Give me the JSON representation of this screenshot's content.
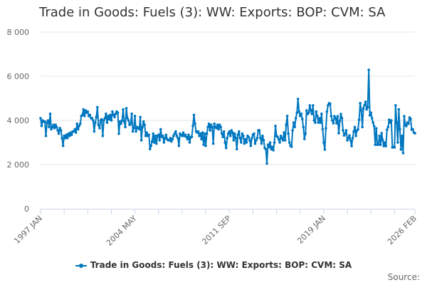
{
  "chart_data": {
    "type": "line",
    "title": "Trade in Goods: Fuels (3): WW: Exports: BOP: CVM: SA",
    "xlabel": "",
    "ylabel": "",
    "x_start": "1997 JAN",
    "x_end": "2026 FEB",
    "frequency": "monthly",
    "x_tick_labels": [
      "1997 JAN",
      "2004 MAY",
      "2011 SEP",
      "2019 JAN",
      "2026 FEB"
    ],
    "y_tick_labels": [
      "0",
      "2 000",
      "4 000",
      "6 000",
      "8 000"
    ],
    "ylim": [
      0,
      8000
    ],
    "grid": "horizontal",
    "legend_position": "bottom",
    "color": "#0077c0",
    "series": [
      {
        "name": "Trade in Goods: Fuels (3): WW: Exports: BOP: CVM: SA",
        "values": [
          4100,
          3750,
          4000,
          3950,
          3950,
          3300,
          3900,
          4000,
          3700,
          4300,
          3600,
          3700,
          3800,
          3650,
          3800,
          3700,
          3550,
          3400,
          3650,
          3550,
          3200,
          2850,
          3300,
          3200,
          3350,
          3200,
          3400,
          3300,
          3450,
          3350,
          3500,
          3500,
          3600,
          3450,
          3850,
          3600,
          3750,
          3850,
          4200,
          4250,
          4500,
          4200,
          4450,
          4350,
          4400,
          4200,
          4250,
          4100,
          4100,
          4000,
          3500,
          3900,
          4150,
          4600,
          3800,
          3650,
          4000,
          4050,
          3300,
          4000,
          4100,
          4300,
          3900,
          4200,
          4050,
          4250,
          4000,
          4400,
          4250,
          4150,
          4300,
          4400,
          4350,
          3400,
          3950,
          3850,
          4000,
          4500,
          3950,
          3700,
          4550,
          4100,
          4000,
          3800,
          3850,
          4300,
          3500,
          3650,
          4200,
          3500,
          3700,
          3650,
          3600,
          4150,
          3100,
          3700,
          3950,
          3800,
          3300,
          3450,
          3300,
          3350,
          2700,
          2850,
          3050,
          3400,
          3000,
          3300,
          2950,
          3300,
          3350,
          3100,
          3600,
          3250,
          3300,
          3000,
          3200,
          3350,
          3150,
          3100,
          3100,
          3200,
          3050,
          3150,
          3300,
          3400,
          3500,
          3300,
          3200,
          2850,
          3400,
          3350,
          3300,
          3450,
          3300,
          3350,
          3250,
          3150,
          3350,
          3000,
          3250,
          3250,
          3750,
          4250,
          3850,
          3500,
          3450,
          3500,
          3300,
          3400,
          3150,
          3450,
          2900,
          3400,
          2850,
          3400,
          3700,
          3850,
          3550,
          3800,
          3700,
          2950,
          3850,
          3700,
          3650,
          3800,
          3600,
          3800,
          3700,
          3400,
          3250,
          3500,
          3000,
          2750,
          3200,
          3400,
          3500,
          3300,
          3550,
          3450,
          3100,
          3400,
          3200,
          2700,
          3350,
          3500,
          3200,
          3000,
          3400,
          3300,
          2950,
          3150,
          3000,
          3300,
          3250,
          3100,
          2850,
          3200,
          3350,
          3400,
          2950,
          3100,
          3200,
          3550,
          3550,
          3200,
          2950,
          3300,
          3100,
          2750,
          2700,
          2050,
          2900,
          2800,
          3000,
          2700,
          2800,
          2650,
          3000,
          3750,
          3300,
          3250,
          3150,
          3000,
          3300,
          3200,
          3100,
          3450,
          3100,
          3800,
          4200,
          3400,
          3000,
          2850,
          2810,
          3550,
          3900,
          3700,
          4100,
          4350,
          4970,
          4400,
          4200,
          4300,
          4070,
          3700,
          3160,
          3400,
          4450,
          4290,
          4350,
          4680,
          4450,
          4290,
          4680,
          4000,
          3900,
          4400,
          4200,
          3900,
          4100,
          3900,
          4300,
          3600,
          3000,
          2680,
          3640,
          4400,
          4680,
          4780,
          4750,
          4190,
          4000,
          3870,
          4190,
          4100,
          3870,
          4190,
          3420,
          3970,
          4290,
          4100,
          3550,
          3320,
          3400,
          3550,
          3100,
          3200,
          3320,
          3100,
          2840,
          3200,
          3500,
          3700,
          3300,
          3550,
          3600,
          4030,
          4780,
          4450,
          3700,
          4550,
          4700,
          4840,
          4500,
          4600,
          6290,
          4230,
          4350,
          4100,
          3900,
          3740,
          2900,
          3640,
          2900,
          2900,
          3300,
          2900,
          3420,
          3100,
          2840,
          3000,
          2840,
          3580,
          3700,
          4030,
          3900,
          4000,
          2780,
          2800,
          2780,
          4680,
          3900,
          3000,
          4500,
          3600,
          2680,
          3300,
          2520,
          4190,
          3800,
          3740,
          3900,
          3850,
          4130,
          4070,
          3580,
          3600,
          3450,
          3420
        ]
      }
    ]
  },
  "source_label": "Source:"
}
